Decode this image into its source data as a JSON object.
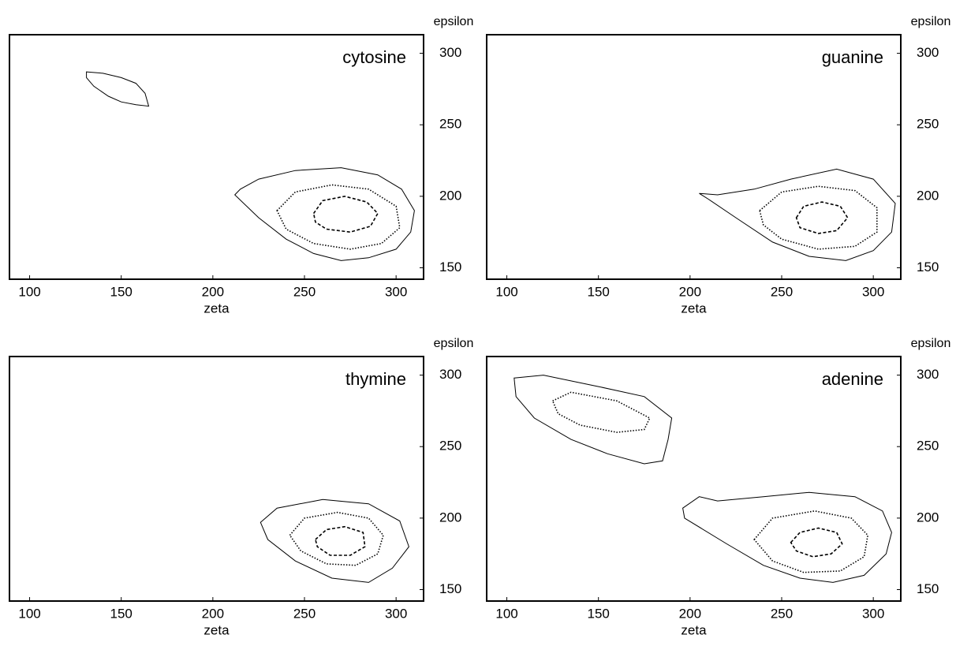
{
  "chart_data": [
    {
      "type": "contour",
      "title": "cytosine",
      "xlabel": "zeta",
      "ylabel": "epsilon",
      "xlim": [
        89,
        315
      ],
      "ylim": [
        142,
        313
      ],
      "xticks": [
        100,
        150,
        200,
        250,
        300
      ],
      "yticks": [
        150,
        200,
        250,
        300
      ],
      "series": [
        {
          "style": "solid",
          "color": "#000000",
          "x": [
            131,
            140,
            150,
            158,
            163,
            165,
            158,
            150,
            143,
            135,
            131
          ],
          "y": [
            287,
            286,
            283,
            279,
            272,
            263,
            264,
            266,
            270,
            277,
            283
          ]
        },
        {
          "style": "solid",
          "color": "#000000",
          "x": [
            212,
            215,
            225,
            245,
            270,
            290,
            303,
            310,
            308,
            300,
            285,
            270,
            255,
            240,
            225
          ],
          "y": [
            201,
            205,
            212,
            218,
            220,
            215,
            205,
            190,
            175,
            163,
            157,
            155,
            160,
            170,
            185
          ]
        },
        {
          "style": "dotted",
          "color": "#000000",
          "x": [
            235,
            245,
            265,
            285,
            300,
            302,
            292,
            275,
            255,
            240
          ],
          "y": [
            190,
            203,
            208,
            205,
            193,
            178,
            167,
            163,
            167,
            177
          ]
        },
        {
          "style": "dashed",
          "color": "#000000",
          "x": [
            255,
            260,
            272,
            284,
            290,
            286,
            275,
            262,
            256
          ],
          "y": [
            188,
            197,
            200,
            196,
            188,
            179,
            175,
            177,
            182
          ]
        }
      ]
    },
    {
      "type": "contour",
      "title": "guanine",
      "xlabel": "zeta",
      "ylabel": "epsilon",
      "xlim": [
        89,
        315
      ],
      "ylim": [
        142,
        313
      ],
      "xticks": [
        100,
        150,
        200,
        250,
        300
      ],
      "yticks": [
        150,
        200,
        250,
        300
      ],
      "series": [
        {
          "style": "solid",
          "color": "#000000",
          "x": [
            205,
            215,
            235,
            255,
            280,
            300,
            312,
            310,
            300,
            285,
            265,
            245,
            225,
            210
          ],
          "y": [
            202,
            201,
            205,
            212,
            219,
            212,
            195,
            175,
            162,
            155,
            158,
            168,
            185,
            198
          ]
        },
        {
          "style": "dotted",
          "color": "#000000",
          "x": [
            238,
            250,
            270,
            290,
            302,
            302,
            290,
            270,
            250,
            240
          ],
          "y": [
            190,
            203,
            207,
            204,
            192,
            175,
            165,
            163,
            170,
            180
          ]
        },
        {
          "style": "dashed",
          "color": "#000000",
          "x": [
            258,
            262,
            272,
            282,
            286,
            280,
            270,
            260
          ],
          "y": [
            185,
            193,
            196,
            193,
            185,
            176,
            174,
            178
          ]
        }
      ]
    },
    {
      "type": "contour",
      "title": "thymine",
      "xlabel": "zeta",
      "ylabel": "epsilon",
      "xlim": [
        89,
        315
      ],
      "ylim": [
        142,
        313
      ],
      "xticks": [
        100,
        150,
        200,
        250,
        300
      ],
      "yticks": [
        150,
        200,
        250,
        300
      ],
      "series": [
        {
          "style": "solid",
          "color": "#000000",
          "x": [
            226,
            235,
            260,
            285,
            302,
            307,
            298,
            285,
            265,
            245,
            230
          ],
          "y": [
            197,
            207,
            213,
            210,
            198,
            180,
            165,
            155,
            158,
            170,
            185
          ]
        },
        {
          "style": "dotted",
          "color": "#000000",
          "x": [
            242,
            250,
            268,
            285,
            293,
            290,
            278,
            262,
            248
          ],
          "y": [
            188,
            200,
            204,
            200,
            188,
            175,
            167,
            168,
            177
          ]
        },
        {
          "style": "dashed",
          "color": "#000000",
          "x": [
            256,
            262,
            272,
            282,
            283,
            275,
            264,
            257
          ],
          "y": [
            185,
            192,
            194,
            190,
            180,
            174,
            174,
            180
          ]
        }
      ]
    },
    {
      "type": "contour",
      "title": "adenine",
      "xlabel": "zeta",
      "ylabel": "epsilon",
      "xlim": [
        89,
        315
      ],
      "ylim": [
        142,
        313
      ],
      "xticks": [
        100,
        150,
        200,
        250,
        300
      ],
      "yticks": [
        150,
        200,
        250,
        300
      ],
      "series": [
        {
          "style": "solid",
          "color": "#000000",
          "x": [
            104,
            120,
            150,
            175,
            190,
            188,
            185,
            175,
            155,
            135,
            115,
            105
          ],
          "y": [
            298,
            300,
            292,
            285,
            270,
            255,
            240,
            238,
            245,
            255,
            270,
            285
          ]
        },
        {
          "style": "dotted",
          "color": "#000000",
          "x": [
            125,
            135,
            160,
            178,
            175,
            160,
            140,
            128
          ],
          "y": [
            282,
            288,
            282,
            270,
            262,
            260,
            265,
            273
          ]
        },
        {
          "style": "solid",
          "color": "#000000",
          "x": [
            196,
            205,
            215,
            240,
            265,
            290,
            305,
            310,
            307,
            295,
            278,
            260,
            240,
            220,
            197
          ],
          "y": [
            207,
            215,
            212,
            215,
            218,
            215,
            205,
            190,
            175,
            160,
            155,
            158,
            167,
            182,
            200
          ]
        },
        {
          "style": "dotted",
          "color": "#000000",
          "x": [
            235,
            245,
            268,
            288,
            297,
            295,
            282,
            262,
            245
          ],
          "y": [
            185,
            200,
            205,
            200,
            188,
            173,
            163,
            162,
            170
          ]
        },
        {
          "style": "dashed",
          "color": "#000000",
          "x": [
            255,
            260,
            270,
            280,
            283,
            277,
            267,
            258
          ],
          "y": [
            183,
            190,
            193,
            190,
            182,
            175,
            173,
            177
          ]
        }
      ]
    }
  ]
}
